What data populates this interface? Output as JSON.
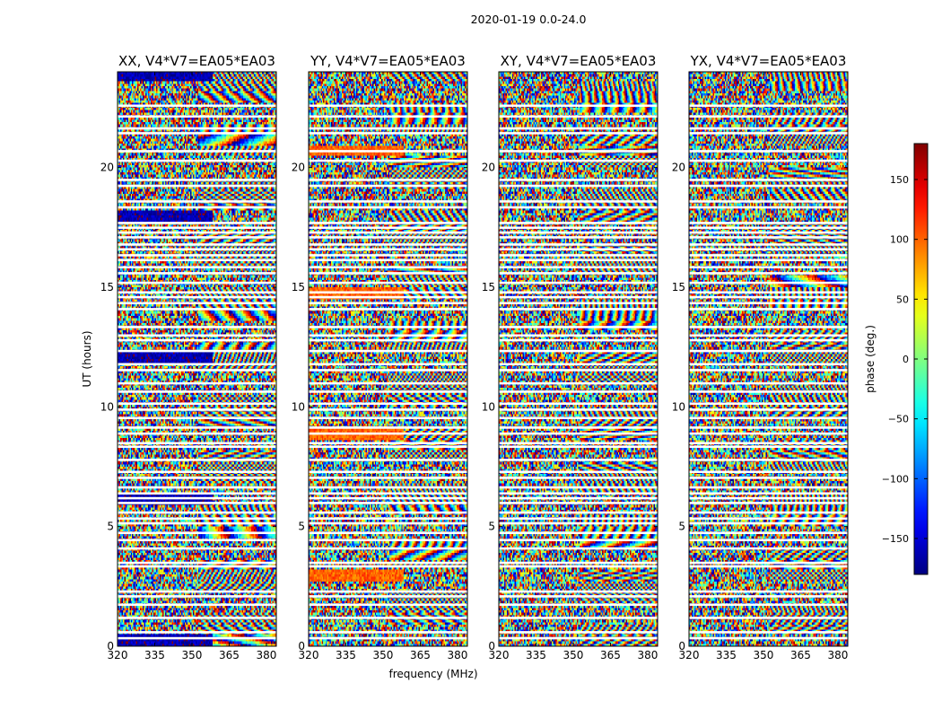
{
  "chart_data": {
    "type": "heatmap",
    "suptitle": "2020-01-19 0.0-24.0",
    "xlabel": "frequency (MHz)",
    "ylabel": "UT (hours)",
    "xlim": [
      320,
      384
    ],
    "ylim": [
      0,
      24
    ],
    "xticks": [
      320,
      335,
      350,
      365,
      380
    ],
    "yticks": [
      0,
      5,
      10,
      15,
      20
    ],
    "panels": [
      {
        "title": "XX, V4*V7=EA05*EA03",
        "polarization": "XX"
      },
      {
        "title": "YY, V4*V7=EA05*EA03",
        "polarization": "YY"
      },
      {
        "title": "XY, V4*V7=EA05*EA03",
        "polarization": "XY"
      },
      {
        "title": "YX, V4*V7=EA05*EA03",
        "polarization": "YX"
      }
    ],
    "colorbar": {
      "label": "phase (deg.)",
      "range": [
        -180,
        180
      ],
      "ticks": [
        -150,
        -100,
        -50,
        0,
        50,
        100,
        150
      ],
      "colormap": "jet"
    },
    "flagged_ut_hours": [
      0.3,
      0.55,
      1.15,
      1.7,
      2.05,
      2.25,
      3.3,
      3.45,
      4.05,
      4.4,
      4.7,
      5.1,
      5.3,
      5.55,
      5.95,
      6.15,
      6.35,
      6.6,
      7.0,
      7.25,
      7.75,
      8.3,
      8.45,
      8.85,
      9.1,
      9.5,
      9.85,
      10.1,
      10.6,
      10.95,
      11.5,
      11.75,
      12.3,
      12.75,
      12.95,
      13.3,
      14.05,
      14.3,
      14.55,
      14.75,
      15.15,
      15.55,
      15.8,
      16.1,
      16.3,
      16.55,
      16.75,
      17.05,
      17.25,
      17.45,
      17.65,
      18.3,
      18.55,
      19.2,
      19.45,
      20.25,
      20.65,
      21.4,
      21.6,
      22.1,
      22.55
    ]
  }
}
